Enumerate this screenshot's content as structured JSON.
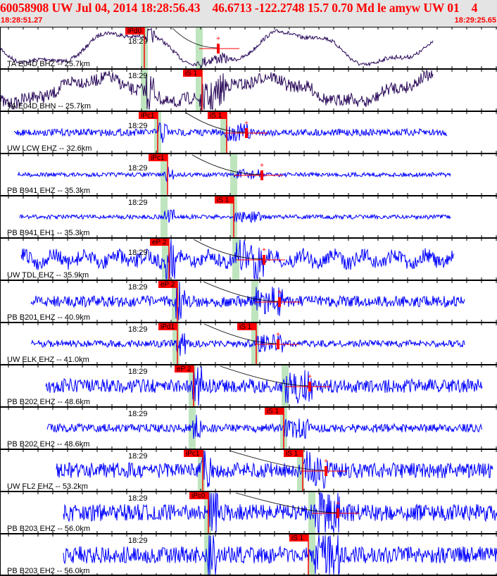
{
  "header": {
    "title": "60058908 UW Jul 04, 2014 18:28:56.43    46.6713 -122.2748 15.7 0.70 Md le amyw UW 01    4",
    "start_time": "18:28:51.27",
    "end_time": "18:29:25.65"
  },
  "colors": {
    "pick": "#ff0000",
    "window": "#bfe5bf",
    "trace_broadband": "#2a0a5a",
    "trace_short": "#0000ff",
    "header_bg": "#e4e4e4"
  },
  "minute_label": "18:29",
  "panels": [
    {
      "label": "TA E04D BHZ -- 25.7km",
      "picks": [
        "iPd0"
      ]
    },
    {
      "label": "TA E04D BHN -- 25.7km",
      "picks": [
        "iS 1"
      ]
    },
    {
      "label": "UW LCW EHZ -- 32.6km",
      "picks": [
        "iPc1",
        "iS 1"
      ]
    },
    {
      "label": "PB B941 EHZ -- 35.3km",
      "picks": [
        "iPc1"
      ]
    },
    {
      "label": "PB B941 EH1 -- 35.3km",
      "picks": [
        "iS 1"
      ]
    },
    {
      "label": "UW TDL EHZ -- 35.9km",
      "picks": [
        "eP 2"
      ]
    },
    {
      "label": "PB B201 EHZ -- 40.9km",
      "picks": [
        "eP 2"
      ]
    },
    {
      "label": "UW ELK EHZ -- 41.0km",
      "picks": [
        "iPd1",
        "iS 1"
      ]
    },
    {
      "label": "PB B202 EHZ -- 48.6km",
      "picks": [
        "eP 2"
      ]
    },
    {
      "label": "PB B202 EH2 -- 48.6km",
      "picks": [
        "iS 1"
      ]
    },
    {
      "label": "UW FL2 EHZ -- 53.2km",
      "picks": [
        "iPc1",
        "iS 1"
      ]
    },
    {
      "label": "PB B203 EHZ -- 56.0km",
      "picks": [
        "iPc0"
      ]
    },
    {
      "label": "PB B203 EH2 -- 56.0km",
      "picks": [
        "iS 1"
      ]
    }
  ]
}
